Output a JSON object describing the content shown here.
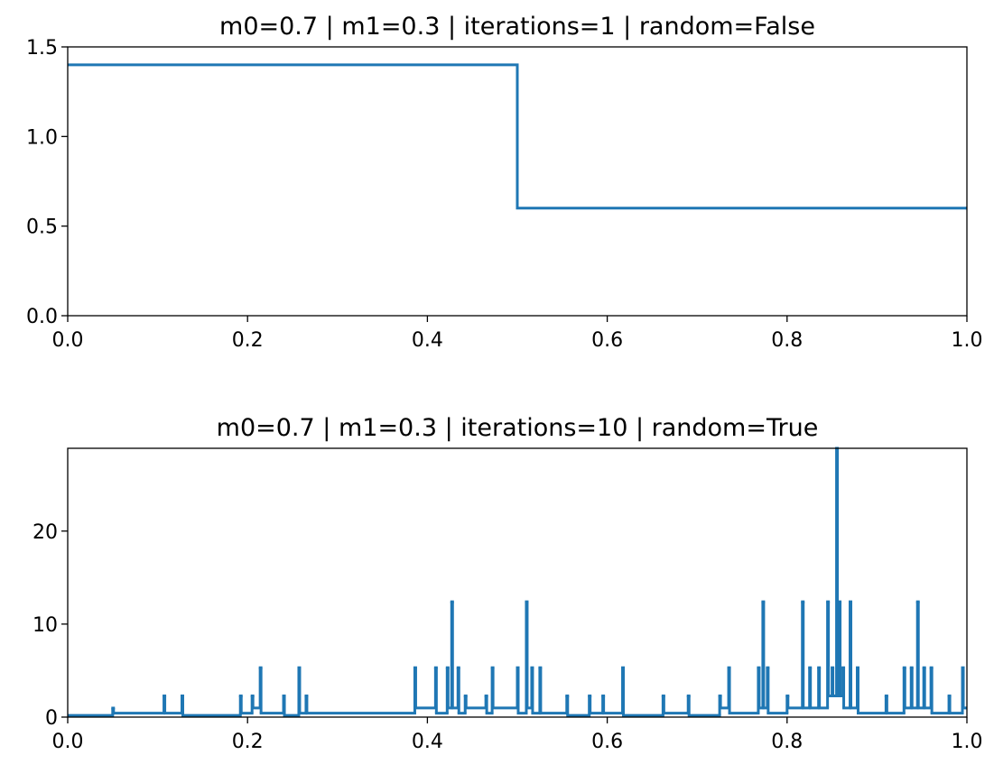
{
  "chart_data": [
    {
      "type": "line",
      "drawstyle": "steps-post",
      "title": "m0=0.7 | m1=0.3 | iterations=1 | random=False",
      "x": [
        0,
        0.5,
        1.0
      ],
      "series": [
        {
          "color": "#1f77b4",
          "values": [
            1.4,
            0.6,
            0.6
          ]
        }
      ],
      "xlim": [
        0,
        1
      ],
      "xticks": [
        {
          "value": 0,
          "label": "0.0"
        },
        0.2,
        0.4,
        0.6,
        0.8,
        {
          "value": 1,
          "label": "1.0"
        }
      ],
      "ylim": [
        0,
        1.5
      ],
      "yticks": [
        {
          "value": 0,
          "label": "0.0"
        },
        0.5,
        {
          "value": 1,
          "label": "1.0"
        },
        1.5
      ]
    },
    {
      "type": "line",
      "drawstyle": "steps-post",
      "title": "m0=0.7 | m1=0.3 | iterations=10 | random=True",
      "x": [
        0,
        0.05,
        0.051,
        0.107,
        0.108,
        0.127,
        0.128,
        0.192,
        0.193,
        0.205,
        0.206,
        0.214,
        0.215,
        0.24,
        0.241,
        0.257,
        0.258,
        0.265,
        0.266,
        0.386,
        0.387,
        0.409,
        0.41,
        0.422,
        0.423,
        0.427,
        0.428,
        0.434,
        0.435,
        0.442,
        0.443,
        0.465,
        0.466,
        0.472,
        0.473,
        0.5,
        0.501,
        0.51,
        0.511,
        0.516,
        0.517,
        0.525,
        0.526,
        0.555,
        0.556,
        0.58,
        0.581,
        0.595,
        0.596,
        0.617,
        0.618,
        0.662,
        0.663,
        0.69,
        0.691,
        0.725,
        0.726,
        0.735,
        0.736,
        0.768,
        0.769,
        0.773,
        0.774,
        0.778,
        0.779,
        0.8,
        0.801,
        0.817,
        0.818,
        0.825,
        0.826,
        0.835,
        0.836,
        0.845,
        0.846,
        0.85,
        0.851,
        0.855,
        0.856,
        0.858,
        0.859,
        0.862,
        0.863,
        0.87,
        0.871,
        0.878,
        0.879,
        0.91,
        0.911,
        0.93,
        0.931,
        0.938,
        0.939,
        0.945,
        0.946,
        0.952,
        0.953,
        0.96,
        0.961,
        0.98,
        0.981,
        0.995,
        0.996,
        1.0
      ],
      "series": [
        {
          "color": "#1f77b4",
          "values": [
            0.18,
            0.97,
            0.42,
            2.28,
            0.42,
            2.28,
            0.18,
            2.28,
            0.42,
            2.28,
            0.98,
            5.31,
            0.42,
            2.28,
            0.18,
            5.31,
            0.42,
            2.28,
            0.42,
            5.31,
            0.98,
            5.31,
            0.42,
            5.31,
            0.98,
            12.4,
            0.98,
            5.31,
            0.42,
            2.28,
            0.98,
            2.28,
            0.42,
            5.31,
            0.98,
            5.31,
            0.42,
            12.4,
            0.98,
            5.31,
            0.42,
            5.31,
            0.42,
            2.28,
            0.18,
            2.28,
            0.42,
            2.28,
            0.42,
            5.31,
            0.18,
            2.28,
            0.42,
            2.28,
            0.18,
            2.28,
            0.98,
            5.31,
            0.42,
            5.31,
            0.98,
            12.4,
            0.98,
            5.31,
            0.42,
            2.28,
            0.98,
            12.4,
            0.98,
            5.31,
            0.98,
            5.31,
            0.98,
            12.4,
            2.28,
            5.31,
            2.28,
            28.9,
            2.28,
            12.4,
            2.28,
            5.31,
            0.98,
            12.4,
            0.98,
            5.31,
            0.42,
            2.28,
            0.42,
            5.31,
            0.98,
            5.31,
            0.98,
            12.4,
            0.98,
            5.31,
            0.98,
            5.31,
            0.42,
            2.28,
            0.42,
            5.31,
            0.98,
            0.98
          ]
        }
      ],
      "xlim": [
        0,
        1
      ],
      "xticks": [
        {
          "value": 0,
          "label": "0.0"
        },
        0.2,
        0.4,
        0.6,
        0.8,
        {
          "value": 1,
          "label": "1.0"
        }
      ],
      "ylim": [
        0,
        28.9
      ],
      "yticks": [
        0,
        10,
        20
      ]
    }
  ]
}
